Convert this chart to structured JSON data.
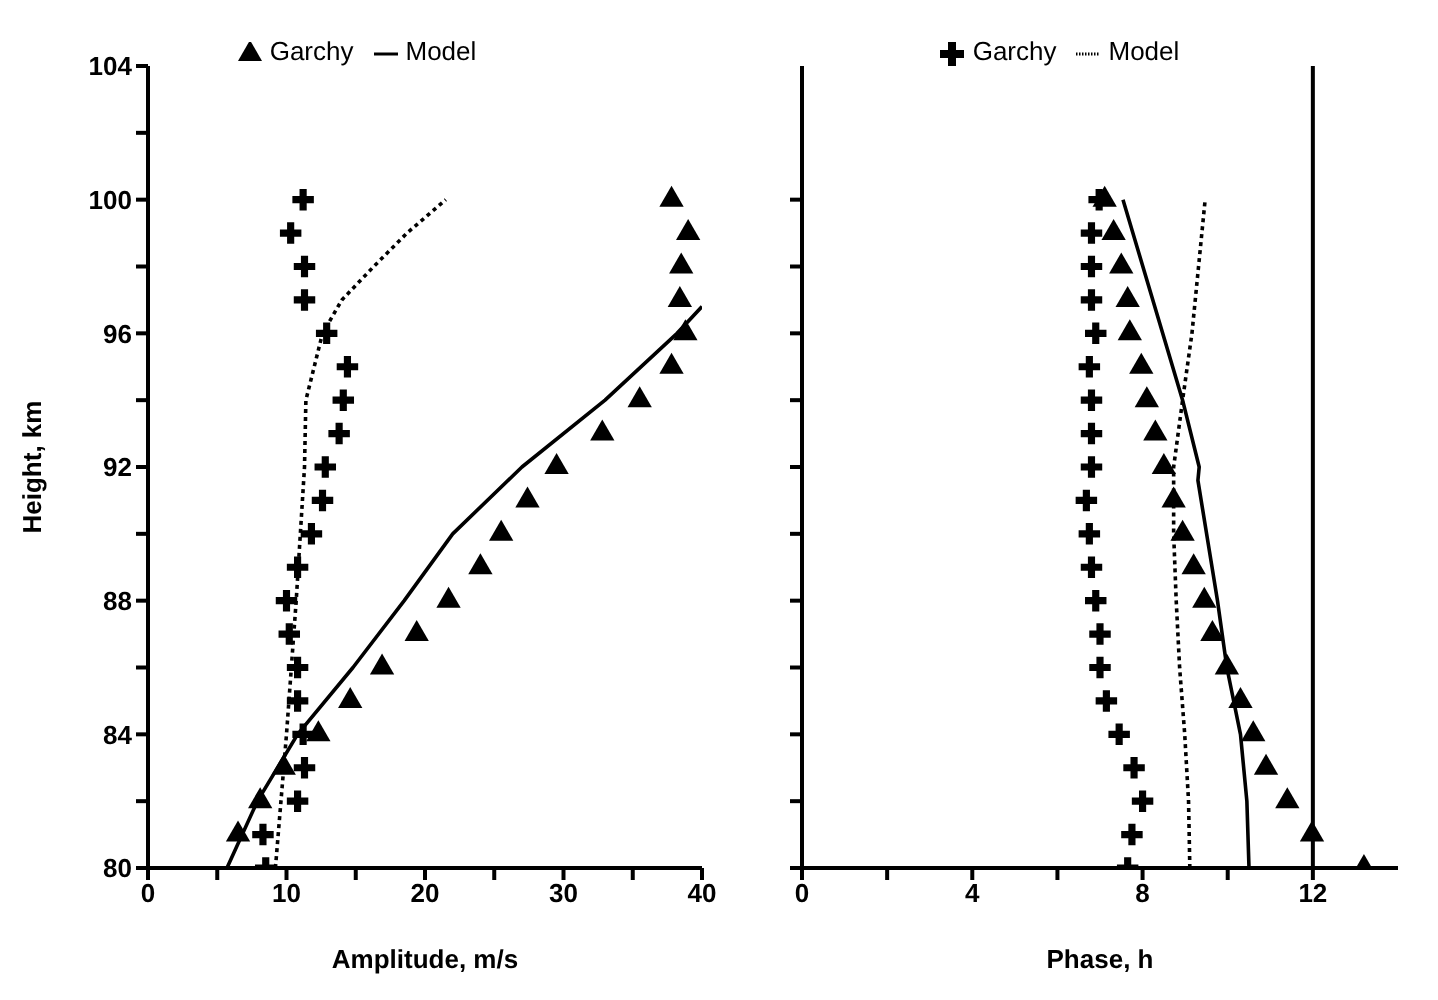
{
  "chart_data": [
    {
      "type": "scatter",
      "xlabel": "Amplitude,   m/s",
      "ylabel": "Height,   km",
      "xlim": [
        0,
        40
      ],
      "ylim": [
        80,
        104
      ],
      "xticks": [
        0,
        {
          "value": 5,
          "label": null
        },
        10,
        {
          "value": 15,
          "label": null
        },
        20,
        {
          "value": 25,
          "label": null
        },
        30,
        {
          "value": 35,
          "label": null
        },
        40
      ],
      "yticks": [
        80,
        {
          "value": 82,
          "label": null
        },
        84,
        {
          "value": 86,
          "label": null
        },
        88,
        {
          "value": 90,
          "label": null
        },
        92,
        {
          "value": 94,
          "label": null
        },
        96,
        {
          "value": 98,
          "label": null
        },
        100,
        {
          "value": 102,
          "label": null
        },
        104
      ],
      "legend": "top",
      "series": [
        {
          "name": "Garchy",
          "marker": "triangle",
          "color": "#000000",
          "x": [
            6.5,
            8.1,
            9.8,
            12.3,
            14.6,
            16.9,
            19.4,
            21.7,
            24,
            25.5,
            27.4,
            29.5,
            32.8,
            35.5,
            37.8,
            38.8,
            38.4,
            38.5,
            39,
            37.8
          ],
          "values": [
            81,
            82,
            83,
            84,
            85,
            86,
            87,
            88,
            89,
            90,
            91,
            92,
            93,
            94,
            95,
            96,
            97,
            98,
            99,
            100
          ]
        },
        {
          "marker": "cross",
          "color": "#000000",
          "x": [
            8.5,
            8.3,
            10.8,
            11.3,
            11.2,
            10.8,
            10.8,
            10.2,
            10,
            10.8,
            11.8,
            12.6,
            12.8,
            13.8,
            14.1,
            14.4,
            12.9,
            11.3,
            11.3,
            10.3,
            11.2
          ],
          "values": [
            80,
            81,
            82,
            83,
            84,
            85,
            86,
            87,
            88,
            89,
            90,
            91,
            92,
            93,
            94,
            95,
            96,
            97,
            98,
            99,
            100
          ]
        },
        {
          "name": "Model",
          "type": "line",
          "marker": "none",
          "line_style": "solid",
          "color": "#000000",
          "x": [
            5.7,
            7.9,
            10.8,
            14.8,
            18.5,
            22,
            27,
            33,
            38.2,
            40
          ],
          "values": [
            80,
            82,
            84,
            86,
            88,
            90,
            92,
            94,
            96,
            96.8
          ]
        },
        {
          "type": "line",
          "marker": "none",
          "line_style": "dotted",
          "color": "#000000",
          "x": [
            9.2,
            10,
            10.7,
            11.3,
            11.4,
            12.6,
            14,
            16.3,
            18.7,
            21.5
          ],
          "values": [
            80,
            84,
            88,
            92,
            94,
            96,
            97,
            98,
            99,
            100
          ]
        }
      ]
    },
    {
      "type": "scatter",
      "xlabel": "Phase,   h",
      "xlim": [
        0,
        14
      ],
      "ylim": [
        80,
        104
      ],
      "tick_labels": "x",
      "xticks": [
        0,
        {
          "value": 2,
          "label": null
        },
        4,
        {
          "value": 6,
          "label": null
        },
        8,
        {
          "value": 10,
          "label": null
        },
        12
      ],
      "yticks": [
        {
          "value": 80,
          "label": null
        },
        {
          "value": 82,
          "label": null
        },
        {
          "value": 84,
          "label": null
        },
        {
          "value": 86,
          "label": null
        },
        {
          "value": 88,
          "label": null
        },
        {
          "value": 90,
          "label": null
        },
        {
          "value": 92,
          "label": null
        },
        {
          "value": 94,
          "label": null
        },
        {
          "value": 96,
          "label": null
        },
        {
          "value": 98,
          "label": null
        },
        {
          "value": 100,
          "label": null
        }
      ],
      "legend": "top",
      "ref_lines": [
        {
          "axis": "x",
          "value": 12
        }
      ],
      "series": [
        {
          "name": "Garchy",
          "marker": "cross",
          "color": "#000000",
          "x": [
            7.65,
            7.75,
            8,
            7.8,
            7.45,
            7.15,
            7,
            7,
            6.9,
            6.8,
            6.75,
            6.68,
            6.8,
            6.8,
            6.8,
            6.75,
            6.9,
            6.8,
            6.8,
            6.8,
            6.98
          ],
          "values": [
            80,
            81,
            82,
            83,
            84,
            85,
            86,
            87,
            88,
            89,
            90,
            91,
            92,
            93,
            94,
            95,
            96,
            97,
            98,
            99,
            100
          ]
        },
        {
          "marker": "triangle",
          "color": "#000000",
          "x": [
            13.2,
            11.98,
            11.4,
            10.9,
            10.6,
            10.3,
            9.98,
            9.64,
            9.45,
            9.2,
            8.94,
            8.73,
            8.5,
            8.3,
            8.1,
            7.97,
            7.7,
            7.65,
            7.5,
            7.32,
            7.11
          ],
          "values": [
            80,
            81,
            82,
            83,
            84,
            85,
            86,
            87,
            88,
            89,
            90,
            91,
            92,
            93,
            94,
            95,
            96,
            97,
            98,
            99,
            100
          ]
        },
        {
          "type": "line",
          "marker": "none",
          "line_style": "solid",
          "color": "#000000",
          "x": [
            10.5,
            10.45,
            10.3,
            9.98,
            9.76,
            9.3,
            9.33,
            8.94,
            7.54
          ],
          "values": [
            80,
            82,
            84,
            86,
            88,
            91.6,
            92,
            94,
            100
          ]
        },
        {
          "name": "Model",
          "type": "line",
          "marker": "none",
          "line_style": "dotted",
          "color": "#000000",
          "x": [
            9.11,
            9.08,
            8.99,
            8.87,
            8.79,
            8.73,
            8.73,
            8.94,
            9.16,
            9.47
          ],
          "values": [
            80,
            82,
            84,
            86,
            88,
            90,
            92,
            94,
            96,
            100
          ]
        }
      ]
    }
  ]
}
